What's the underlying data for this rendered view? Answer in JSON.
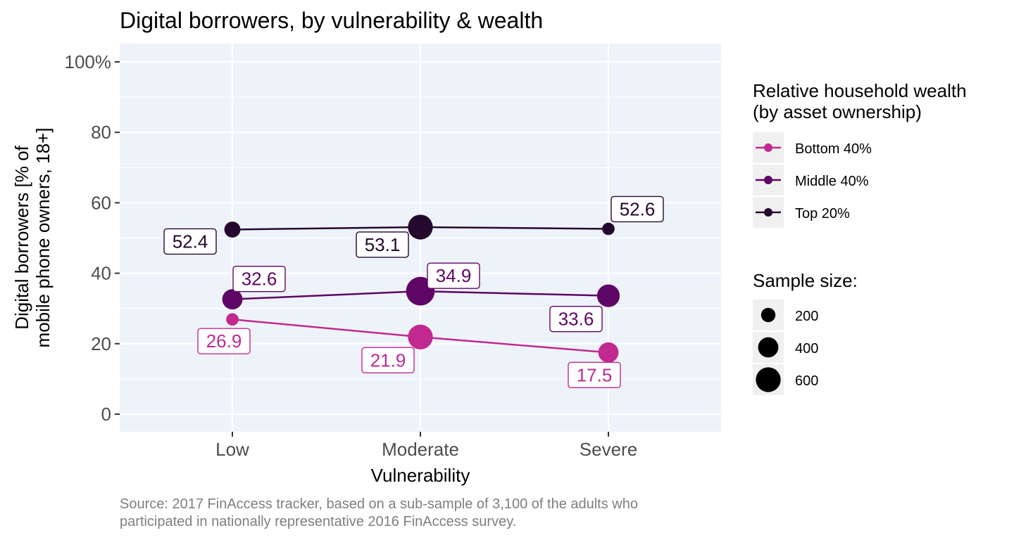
{
  "chart_data": {
    "type": "line",
    "title": "Digital borrowers, by vulnerability & wealth",
    "xlabel": "Vulnerability",
    "ylabel_lines": [
      "Digital borrowers [% of",
      "mobile phone owners, 18+]"
    ],
    "categories": [
      "Low",
      "Moderate",
      "Severe"
    ],
    "ylim": [
      -5,
      105
    ],
    "yticks": [
      0,
      20,
      40,
      60,
      80,
      100
    ],
    "ytick_labels": [
      "0",
      "20",
      "40",
      "60",
      "80",
      "100%"
    ],
    "grid": true,
    "legend_position": "right",
    "series": [
      {
        "name": "Bottom 40%",
        "color": "#C2298F",
        "values": [
          26.9,
          21.9,
          17.5
        ],
        "labels": [
          "26.9",
          "21.9",
          "17.5"
        ],
        "sizes": [
          150,
          600,
          400
        ]
      },
      {
        "name": "Middle 40%",
        "color": "#5E0665",
        "values": [
          32.6,
          34.9,
          33.6
        ],
        "labels": [
          "32.6",
          "34.9",
          "33.6"
        ],
        "sizes": [
          400,
          800,
          500
        ]
      },
      {
        "name": "Top 20%",
        "color": "#25082E",
        "values": [
          52.4,
          53.1,
          52.6
        ],
        "labels": [
          "52.4",
          "53.1",
          "52.6"
        ],
        "sizes": [
          250,
          600,
          150
        ]
      }
    ],
    "legend_color_title_lines": [
      "Relative household wealth",
      "(by asset ownership)"
    ],
    "legend_size_title": "Sample size:",
    "legend_size_items": [
      {
        "label": "200",
        "size": 200
      },
      {
        "label": "400",
        "size": 400
      },
      {
        "label": "600",
        "size": 600
      }
    ],
    "caption_lines": [
      "Source: 2017 FinAccess tracker, based on a sub-sample of 3,100 of the adults who",
      "participated in nationally representative 2016 FinAccess survey."
    ]
  }
}
